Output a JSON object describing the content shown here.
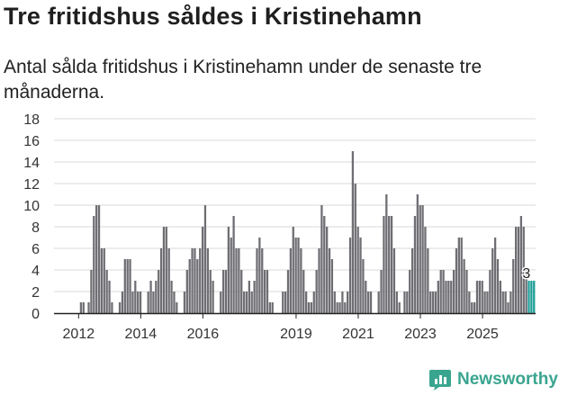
{
  "header": {
    "title": "Tre fritidshus såldes i Kristinehamn",
    "subtitle": "Antal sålda fritidshus i Kristinehamn under de senaste tre månaderna."
  },
  "brand": {
    "name": "Newsworthy",
    "color": "#3aa58f"
  },
  "colors": {
    "bar": "#6e6e73",
    "highlight": "#1f9e97",
    "grid": "#d9d9d9"
  },
  "chart_data": {
    "type": "bar",
    "title": "",
    "xlabel": "",
    "ylabel": "",
    "ylim": [
      0,
      18
    ],
    "yticks": [
      0,
      2,
      4,
      6,
      8,
      10,
      12,
      14,
      16,
      18
    ],
    "xticks": [
      {
        "label": "2012",
        "index": 9
      },
      {
        "label": "2014",
        "index": 33
      },
      {
        "label": "2016",
        "index": 57
      },
      {
        "label": "2019",
        "index": 93
      },
      {
        "label": "2021",
        "index": 117
      },
      {
        "label": "2023",
        "index": 141
      },
      {
        "label": "2025",
        "index": 165
      }
    ],
    "grid": true,
    "values": [
      0,
      0,
      0,
      0,
      0,
      0,
      0,
      0,
      0,
      0,
      1,
      1,
      0,
      1,
      4,
      9,
      10,
      10,
      6,
      6,
      4,
      3,
      1,
      0,
      0,
      1,
      2,
      5,
      5,
      5,
      2,
      3,
      2,
      2,
      0,
      0,
      2,
      3,
      2,
      3,
      4,
      6,
      8,
      8,
      6,
      3,
      2,
      1,
      0,
      0,
      2,
      4,
      5,
      6,
      6,
      5,
      6,
      8,
      10,
      6,
      4,
      3,
      0,
      0,
      2,
      4,
      4,
      8,
      7,
      9,
      6,
      6,
      4,
      2,
      2,
      3,
      2,
      3,
      6,
      7,
      6,
      4,
      4,
      1,
      1,
      0,
      0,
      0,
      2,
      2,
      4,
      6,
      8,
      7,
      7,
      6,
      4,
      2,
      1,
      1,
      2,
      4,
      6,
      10,
      9,
      8,
      6,
      5,
      2,
      1,
      1,
      2,
      1,
      2,
      7,
      15,
      12,
      8,
      7,
      5,
      3,
      2,
      2,
      0,
      0,
      2,
      4,
      9,
      11,
      9,
      9,
      6,
      2,
      1,
      0,
      2,
      2,
      4,
      6,
      9,
      11,
      10,
      10,
      8,
      6,
      2,
      2,
      2,
      3,
      4,
      4,
      3,
      3,
      3,
      4,
      6,
      7,
      7,
      5,
      4,
      2,
      1,
      1,
      3,
      3,
      3,
      2,
      2,
      4,
      6,
      7,
      5,
      3,
      2,
      2,
      1,
      2,
      5,
      8,
      8,
      9,
      8,
      4,
      3,
      3,
      3
    ],
    "highlight_last": 3,
    "last_label": "3"
  }
}
